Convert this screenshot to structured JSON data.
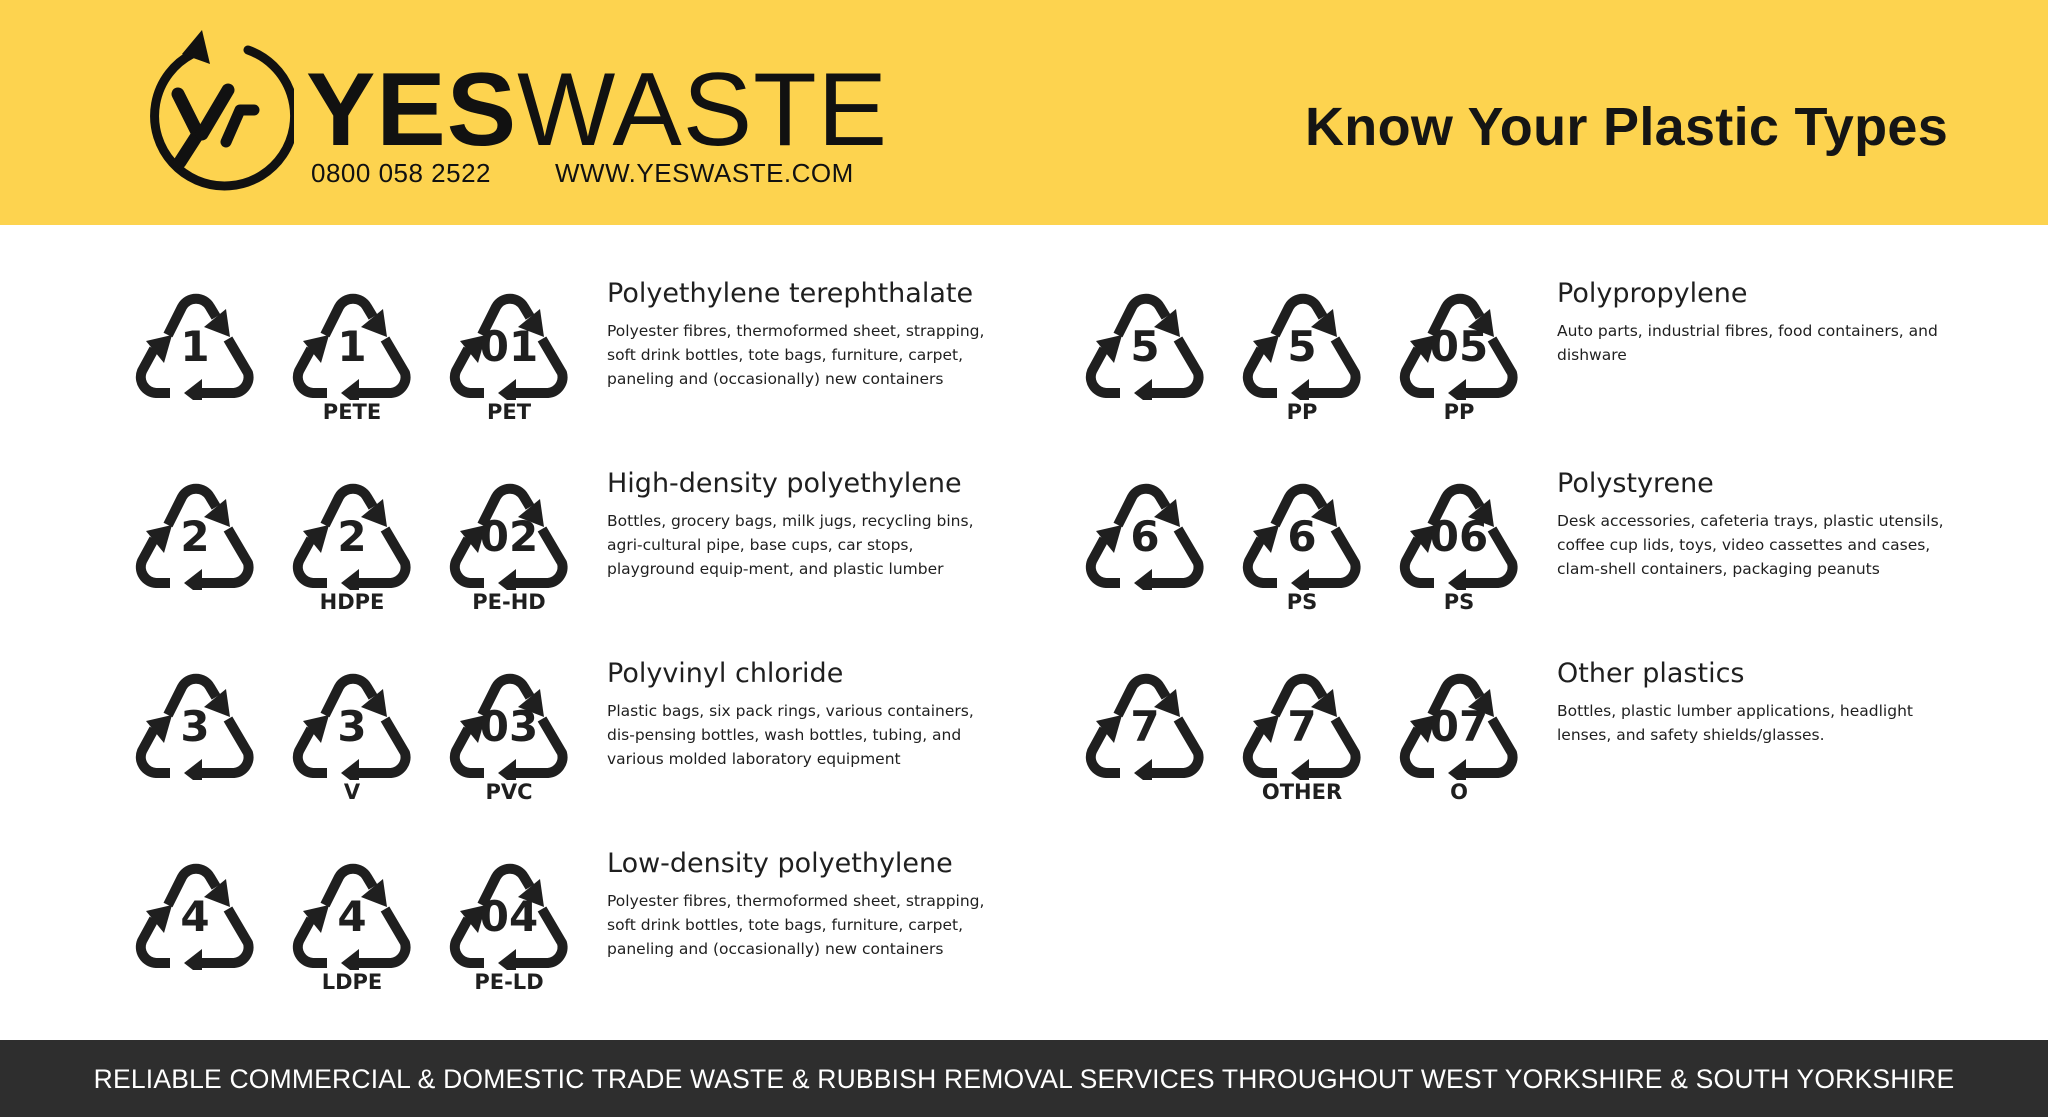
{
  "colors": {
    "header_bg": "#fdd34f",
    "footer_bg": "#2e2e2e",
    "symbol": "#1f1f1f"
  },
  "header": {
    "brand_yes": "YES",
    "brand_waste": "WASTE",
    "phone": "0800 058 2522",
    "website": "WWW.YESWASTE.COM",
    "title": "Know Your Plastic Types"
  },
  "plastics": [
    {
      "title": "Polyethylene terephthalate",
      "description": "Polyester fibres, thermoformed sheet, strapping, soft drink bottles, tote bags, furniture, carpet, paneling and (occasionally) new containers",
      "symbols": [
        {
          "num": "1",
          "abbr": ""
        },
        {
          "num": "1",
          "abbr": "PETE"
        },
        {
          "num": "01",
          "abbr": "PET"
        }
      ]
    },
    {
      "title": "High-density polyethylene",
      "description": "Bottles, grocery bags, milk jugs, recycling bins, agri-cultural pipe, base cups, car stops, playground equip-ment, and plastic lumber",
      "symbols": [
        {
          "num": "2",
          "abbr": ""
        },
        {
          "num": "2",
          "abbr": "HDPE"
        },
        {
          "num": "02",
          "abbr": "PE-HD"
        }
      ]
    },
    {
      "title": "Polyvinyl chloride",
      "description": "Plastic bags, six pack rings, various containers, dis-pensing bottles, wash bottles, tubing, and various molded laboratory equipment",
      "symbols": [
        {
          "num": "3",
          "abbr": ""
        },
        {
          "num": "3",
          "abbr": "V"
        },
        {
          "num": "03",
          "abbr": "PVC"
        }
      ]
    },
    {
      "title": "Low-density polyethylene",
      "description": "Polyester fibres, thermoformed sheet, strapping, soft drink bottles, tote bags, furniture, carpet, paneling and (occasionally) new containers",
      "symbols": [
        {
          "num": "4",
          "abbr": ""
        },
        {
          "num": "4",
          "abbr": "LDPE"
        },
        {
          "num": "04",
          "abbr": "PE-LD"
        }
      ]
    },
    {
      "title": "Polypropylene",
      "description": "Auto parts, industrial fibres, food containers, and dishware",
      "symbols": [
        {
          "num": "5",
          "abbr": ""
        },
        {
          "num": "5",
          "abbr": "PP"
        },
        {
          "num": "05",
          "abbr": "PP"
        }
      ]
    },
    {
      "title": "Polystyrene",
      "description": "Desk accessories, cafeteria trays, plastic utensils, coffee cup lids, toys, video cassettes and cases, clam-shell containers, packaging peanuts",
      "symbols": [
        {
          "num": "6",
          "abbr": ""
        },
        {
          "num": "6",
          "abbr": "PS"
        },
        {
          "num": "06",
          "abbr": "PS"
        }
      ]
    },
    {
      "title": "Other plastics",
      "description": "Bottles, plastic lumber applications, headlight lenses, and safety shields/glasses.",
      "symbols": [
        {
          "num": "7",
          "abbr": ""
        },
        {
          "num": "7",
          "abbr": "OTHER"
        },
        {
          "num": "07",
          "abbr": "O"
        }
      ]
    }
  ],
  "footer": {
    "text": "RELIABLE COMMERCIAL & DOMESTIC TRADE WASTE & RUBBISH REMOVAL SERVICES THROUGHOUT WEST YORKSHIRE & SOUTH YORKSHIRE"
  }
}
